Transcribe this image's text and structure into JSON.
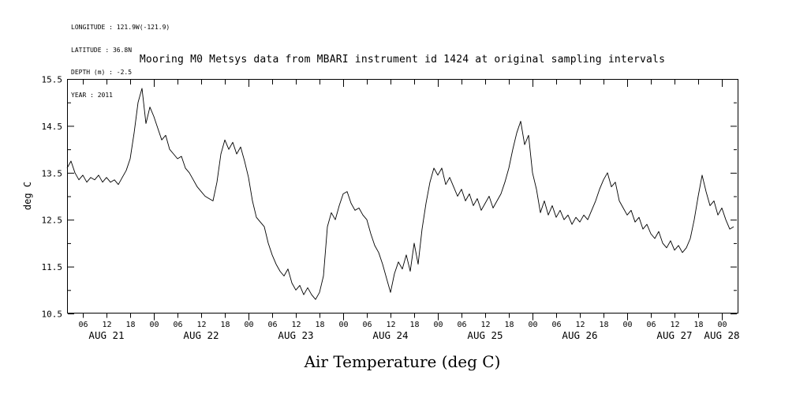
{
  "header": {
    "meta_lines": [
      "LONGITUDE : 121.9W(-121.9)",
      "LATITUDE : 36.8N",
      "DEPTH (m) : -2.5",
      "YEAR : 2011"
    ]
  },
  "chart_data": {
    "type": "line",
    "title": "Mooring M0 Metsys data from MBARI instrument id 1424 at original sampling intervals",
    "xlabel": "Air Temperature (deg C)",
    "ylabel": "deg C",
    "ylim": [
      10.5,
      15.5
    ],
    "yticks_labeled": [
      10.5,
      11.5,
      12.5,
      13.5,
      14.5,
      15.5
    ],
    "ytick_minor_step": 0.5,
    "grid": false,
    "legend": false,
    "line_color": "#000000",
    "x_axis": {
      "hours_domain": [
        2,
        172
      ],
      "hour_tick_step": 6,
      "hour_tick_labels_cycle": [
        "06",
        "12",
        "18",
        "00"
      ],
      "day_labels": [
        "AUG 21",
        "AUG 22",
        "AUG 23",
        "AUG 24",
        "AUG 25",
        "AUG 26",
        "AUG 27",
        "AUG 28"
      ]
    },
    "series": [
      {
        "name": "Air Temperature",
        "units": "deg C",
        "x_hours_start": 2,
        "x_hours_step": 1,
        "values": [
          13.6,
          13.75,
          13.5,
          13.35,
          13.45,
          13.3,
          13.4,
          13.35,
          13.45,
          13.3,
          13.4,
          13.3,
          13.35,
          13.25,
          13.4,
          13.55,
          13.8,
          14.35,
          15.0,
          15.3,
          14.55,
          14.9,
          14.7,
          14.45,
          14.2,
          14.3,
          14.0,
          13.9,
          13.8,
          13.85,
          13.6,
          13.5,
          13.35,
          13.2,
          13.1,
          13.0,
          12.95,
          12.9,
          13.3,
          13.9,
          14.2,
          14.0,
          14.15,
          13.9,
          14.05,
          13.75,
          13.4,
          12.9,
          12.55,
          12.45,
          12.35,
          12.0,
          11.75,
          11.55,
          11.4,
          11.3,
          11.45,
          11.15,
          11.0,
          11.1,
          10.9,
          11.05,
          10.9,
          10.8,
          10.95,
          11.3,
          12.35,
          12.65,
          12.5,
          12.8,
          13.05,
          13.1,
          12.85,
          12.7,
          12.75,
          12.6,
          12.5,
          12.2,
          11.95,
          11.8,
          11.55,
          11.25,
          10.95,
          11.35,
          11.6,
          11.45,
          11.75,
          11.4,
          12.0,
          11.55,
          12.3,
          12.85,
          13.3,
          13.6,
          13.45,
          13.6,
          13.25,
          13.4,
          13.2,
          13.0,
          13.15,
          12.9,
          13.05,
          12.8,
          12.95,
          12.7,
          12.85,
          13.0,
          12.75,
          12.9,
          13.05,
          13.3,
          13.6,
          14.0,
          14.35,
          14.6,
          14.1,
          14.3,
          13.5,
          13.15,
          12.65,
          12.9,
          12.6,
          12.8,
          12.55,
          12.7,
          12.5,
          12.6,
          12.4,
          12.55,
          12.45,
          12.6,
          12.5,
          12.7,
          12.9,
          13.15,
          13.35,
          13.5,
          13.2,
          13.3,
          12.9,
          12.75,
          12.6,
          12.7,
          12.45,
          12.55,
          12.3,
          12.4,
          12.2,
          12.1,
          12.25,
          12.0,
          11.9,
          12.05,
          11.85,
          11.95,
          11.8,
          11.9,
          12.1,
          12.5,
          13.0,
          13.45,
          13.1,
          12.8,
          12.9,
          12.6,
          12.75,
          12.5,
          12.3,
          12.35
        ]
      }
    ]
  }
}
